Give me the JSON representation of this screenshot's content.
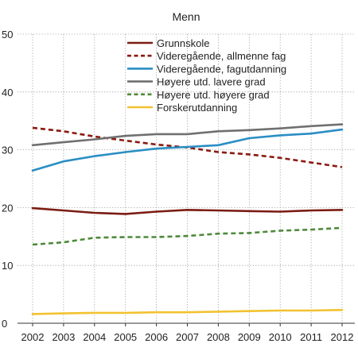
{
  "chart_data": {
    "type": "line",
    "title": "Menn",
    "xlabel": "",
    "ylabel": "",
    "x": [
      2002,
      2003,
      2004,
      2005,
      2006,
      2007,
      2008,
      2009,
      2010,
      2011,
      2012
    ],
    "ylim": [
      0,
      50
    ],
    "yticks": [
      0,
      10,
      20,
      30,
      40,
      50
    ],
    "grid": true,
    "legend_position": "top",
    "series": [
      {
        "name": "Grunnskole",
        "color": "#7b1c12",
        "dash": "solid",
        "values": [
          19.9,
          19.5,
          19.1,
          18.9,
          19.3,
          19.6,
          19.5,
          19.4,
          19.3,
          19.5,
          19.6
        ]
      },
      {
        "name": "Videregående, allmenne fag",
        "color": "#8b1a10",
        "dash": "dashed",
        "values": [
          33.8,
          33.2,
          32.3,
          31.6,
          30.9,
          30.4,
          29.6,
          29.2,
          28.6,
          27.8,
          27.0
        ]
      },
      {
        "name": "Videregående, fagutdanning",
        "color": "#2a8ec4",
        "dash": "solid",
        "values": [
          26.4,
          28.0,
          28.9,
          29.6,
          30.2,
          30.5,
          30.8,
          32.0,
          32.5,
          32.8,
          33.5
        ]
      },
      {
        "name": "Høyere utd. lavere grad",
        "color": "#707070",
        "dash": "solid",
        "values": [
          30.8,
          31.3,
          31.8,
          32.4,
          32.7,
          32.7,
          33.2,
          33.4,
          33.7,
          34.1,
          34.4
        ]
      },
      {
        "name": "Høyere utd. høyere grad",
        "color": "#4e8a3a",
        "dash": "dashed",
        "values": [
          13.6,
          14.0,
          14.8,
          14.9,
          14.9,
          15.1,
          15.5,
          15.6,
          16.0,
          16.2,
          16.5
        ]
      },
      {
        "name": "Forskerutdanning",
        "color": "#f2c230",
        "dash": "solid",
        "values": [
          1.6,
          1.7,
          1.8,
          1.8,
          1.9,
          1.9,
          2.0,
          2.1,
          2.2,
          2.2,
          2.3
        ]
      }
    ]
  }
}
